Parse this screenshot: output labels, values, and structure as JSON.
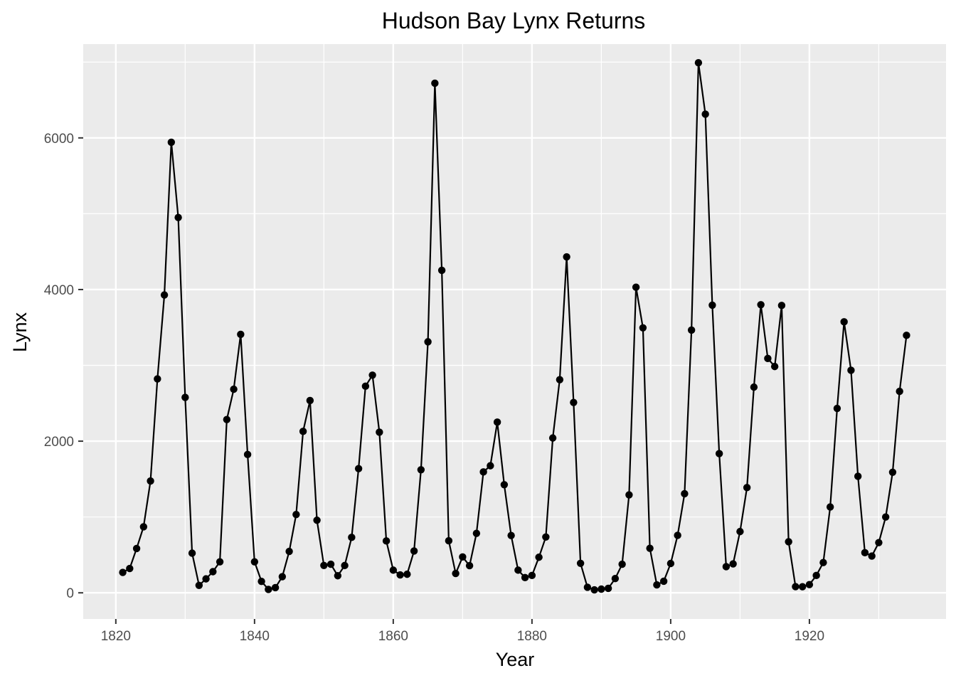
{
  "chart_data": {
    "type": "line",
    "title": "Hudson Bay Lynx Returns",
    "xlabel": "Year",
    "ylabel": "Lynx",
    "xlim": [
      1815.3,
      1939.7
    ],
    "ylim": [
      -345,
      7237
    ],
    "x_ticks": [
      1820,
      1840,
      1860,
      1880,
      1900,
      1920
    ],
    "x_tick_labels": [
      "1820",
      "1840",
      "1860",
      "1880",
      "1900",
      "1920"
    ],
    "y_ticks": [
      0,
      2000,
      4000,
      6000
    ],
    "y_tick_labels": [
      "0",
      "2000",
      "4000",
      "6000"
    ],
    "grid": true,
    "theme": {
      "panel_background": "#ebebeb",
      "grid_color": "#ffffff",
      "line_color": "#000000",
      "point_color": "#000000",
      "tick_color": "#333333",
      "tick_label_color": "#4d4d4d"
    },
    "series": [
      {
        "markers": true,
        "x": [
          1821,
          1822,
          1823,
          1824,
          1825,
          1826,
          1827,
          1828,
          1829,
          1830,
          1831,
          1832,
          1833,
          1834,
          1835,
          1836,
          1837,
          1838,
          1839,
          1840,
          1841,
          1842,
          1843,
          1844,
          1845,
          1846,
          1847,
          1848,
          1849,
          1850,
          1851,
          1852,
          1853,
          1854,
          1855,
          1856,
          1857,
          1858,
          1859,
          1860,
          1861,
          1862,
          1863,
          1864,
          1865,
          1866,
          1867,
          1868,
          1869,
          1870,
          1871,
          1872,
          1873,
          1874,
          1875,
          1876,
          1877,
          1878,
          1879,
          1880,
          1881,
          1882,
          1883,
          1884,
          1885,
          1886,
          1887,
          1888,
          1889,
          1890,
          1891,
          1892,
          1893,
          1894,
          1895,
          1896,
          1897,
          1898,
          1899,
          1900,
          1901,
          1902,
          1903,
          1904,
          1905,
          1906,
          1907,
          1908,
          1909,
          1910,
          1911,
          1912,
          1913,
          1914,
          1915,
          1916,
          1917,
          1918,
          1919,
          1920,
          1921,
          1922,
          1923,
          1924,
          1925,
          1926,
          1927,
          1928,
          1929,
          1930,
          1931,
          1932,
          1933,
          1934
        ],
        "y": [
          269,
          321,
          585,
          871,
          1475,
          2821,
          3928,
          5943,
          4950,
          2577,
          523,
          98,
          184,
          279,
          409,
          2285,
          2685,
          3409,
          1824,
          409,
          151,
          45,
          68,
          213,
          546,
          1033,
          2129,
          2536,
          957,
          361,
          377,
          225,
          360,
          731,
          1638,
          2725,
          2871,
          2119,
          684,
          299,
          236,
          245,
          552,
          1623,
          3311,
          6721,
          4254,
          687,
          255,
          473,
          358,
          784,
          1594,
          1676,
          2251,
          1426,
          756,
          299,
          201,
          229,
          469,
          736,
          2042,
          2811,
          4431,
          2511,
          389,
          73,
          39,
          49,
          59,
          188,
          377,
          1292,
          4031,
          3495,
          587,
          105,
          153,
          387,
          758,
          1307,
          3465,
          6991,
          6313,
          3794,
          1836,
          345,
          382,
          808,
          1388,
          2713,
          3800,
          3091,
          2985,
          3790,
          674,
          81,
          80,
          108,
          229,
          399,
          1132,
          2432,
          3574,
          2935,
          1537,
          529,
          485,
          662,
          1000,
          1590,
          2657,
          3396
        ]
      }
    ]
  }
}
